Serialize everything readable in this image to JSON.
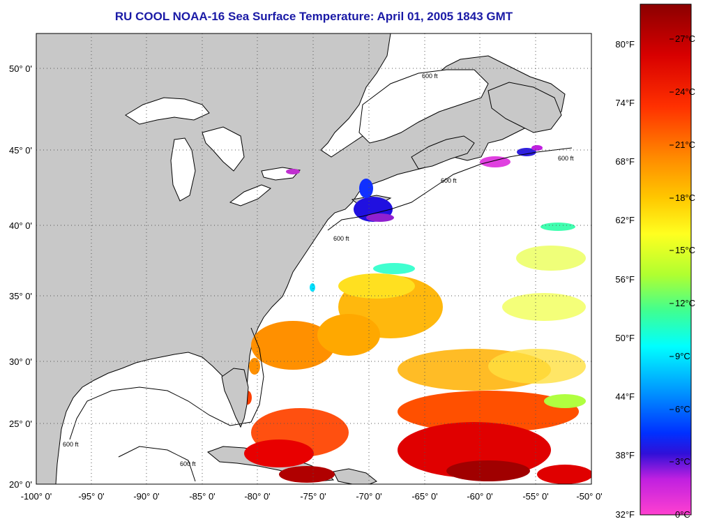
{
  "title": "RU COOL  NOAA-16  Sea Surface Temperature:  April 01, 2005 1843 GMT",
  "map": {
    "longitude_labels": [
      "-100° 0'",
      "-95° 0'",
      "-90° 0'",
      "-85° 0'",
      "-80° 0'",
      "-75° 0'",
      "-70° 0'",
      "-65° 0'",
      "-60° 0'",
      "-55° 0'",
      "-50° 0'"
    ],
    "latitude_labels": [
      "50° 0'",
      "45° 0'",
      "40° 0'",
      "35° 0'",
      "30° 0'",
      "25° 0'",
      "20° 0'"
    ],
    "isobath_label": "600 ft",
    "land_color": "#c8c8c8",
    "ocean_color": "#ffffff"
  },
  "colorbar": {
    "fahrenheit_labels": [
      "80°F",
      "74°F",
      "68°F",
      "62°F",
      "56°F",
      "50°F",
      "44°F",
      "38°F",
      "32°F"
    ],
    "celsius_labels": [
      "27°C",
      "24°C",
      "21°C",
      "18°C",
      "15°C",
      "12°C",
      "9°C",
      "6°C",
      "3°C",
      "0°C"
    ],
    "colors": [
      "#8b0000",
      "#d00000",
      "#ff2000",
      "#ff6a00",
      "#ffa000",
      "#ffd000",
      "#ffff20",
      "#b0ff30",
      "#40ff90",
      "#00ffff",
      "#00a0ff",
      "#0030ff",
      "#1010e0",
      "#9000d0",
      "#ff30d0"
    ]
  }
}
